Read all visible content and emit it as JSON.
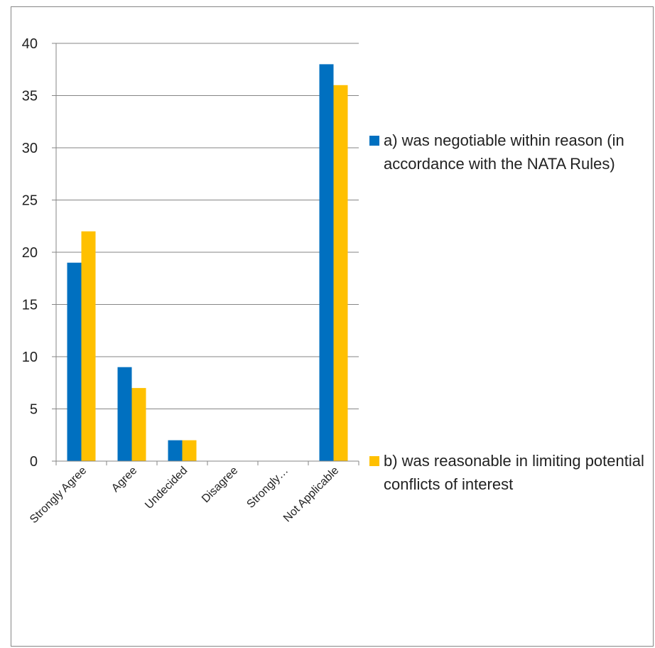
{
  "chart_data": {
    "type": "bar",
    "categories": [
      "Strongly Agree",
      "Agree",
      "Undecided",
      "Disagree",
      "Strongly…",
      "Not Applicable"
    ],
    "series": [
      {
        "name": "a) was negotiable within reason (in accordance with the NATA Rules)",
        "values": [
          19,
          9,
          2,
          0,
          0,
          38
        ],
        "color": "#0070C0"
      },
      {
        "name": "b) was reasonable in limiting potential conflicts of interest",
        "values": [
          22,
          7,
          2,
          0,
          0,
          36
        ],
        "color": "#FFC000"
      }
    ],
    "ylim": [
      0,
      40
    ],
    "yticks": [
      0,
      5,
      10,
      15,
      20,
      25,
      30,
      35,
      40
    ],
    "grid": true,
    "legend_position": "right",
    "title": "",
    "xlabel": "",
    "ylabel": ""
  }
}
